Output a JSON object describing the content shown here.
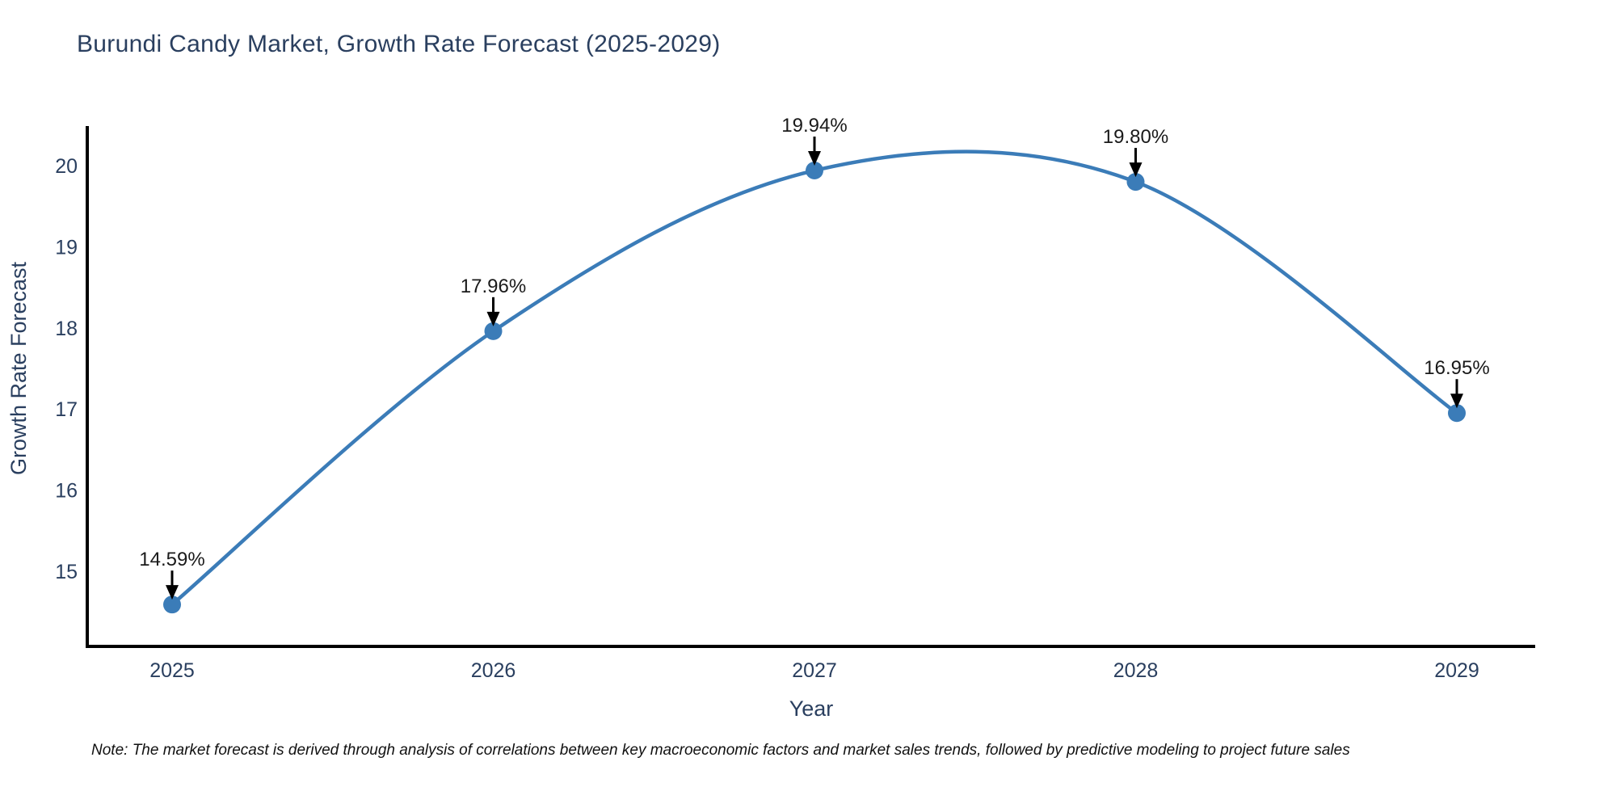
{
  "title": "Burundi Candy Market, Growth Rate Forecast (2025-2029)",
  "note": "Note: The market forecast is derived through analysis of correlations between key macroeconomic factors and market sales trends, followed by predictive modeling to project future sales",
  "chart_data": {
    "type": "line",
    "title": "Burundi Candy Market, Growth Rate Forecast (2025-2029)",
    "xlabel": "Year",
    "ylabel": "Growth Rate Forecast",
    "x": [
      2025,
      2026,
      2027,
      2028,
      2029
    ],
    "y": [
      14.59,
      17.96,
      19.94,
      19.8,
      16.95
    ],
    "point_labels": [
      "14.59%",
      "17.96%",
      "19.94%",
      "19.80%",
      "16.95%"
    ],
    "xticks": [
      "2025",
      "2026",
      "2027",
      "2028",
      "2029"
    ],
    "yticks": [
      15,
      16,
      17,
      18,
      19,
      20
    ],
    "xlim": [
      2025,
      2029
    ],
    "ylim": [
      14.06,
      20.47
    ],
    "line_shape": "spline",
    "grid": false,
    "legend_position": "none",
    "colors": {
      "line": "#3b7cb8",
      "marker": "#3b7cb8",
      "title_text": "#2a3f5f",
      "axis_text": "#2a3f5f",
      "annotation_text": "#1a1a1a",
      "arrow": "#000000",
      "axis_line": "#000000",
      "background": "#ffffff"
    }
  }
}
